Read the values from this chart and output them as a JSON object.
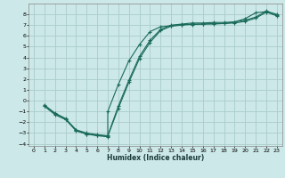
{
  "title": "",
  "xlabel": "Humidex (Indice chaleur)",
  "bg_color": "#cce8e8",
  "grid_color": "#aacccc",
  "line_color": "#1a6b5a",
  "xlim": [
    -0.5,
    23.5
  ],
  "ylim": [
    -4.2,
    9.0
  ],
  "xticks": [
    0,
    1,
    2,
    3,
    4,
    5,
    6,
    7,
    8,
    9,
    10,
    11,
    12,
    13,
    14,
    15,
    16,
    17,
    18,
    19,
    20,
    21,
    22,
    23
  ],
  "yticks": [
    -4,
    -3,
    -2,
    -1,
    0,
    1,
    2,
    3,
    4,
    5,
    6,
    7,
    8
  ],
  "line1_x": [
    1,
    2,
    3,
    4,
    5,
    6,
    7,
    7,
    8,
    9,
    10,
    11,
    12,
    13,
    14,
    15,
    16,
    17,
    18,
    19,
    20,
    21,
    22,
    23
  ],
  "line1_y": [
    -0.5,
    -1.2,
    -1.7,
    -2.8,
    -3.1,
    -3.25,
    -3.35,
    -1.0,
    1.5,
    3.7,
    5.2,
    6.4,
    6.85,
    6.95,
    7.05,
    7.05,
    7.1,
    7.1,
    7.15,
    7.3,
    7.6,
    8.15,
    8.25,
    7.85
  ],
  "line2_x": [
    1,
    2,
    3,
    4,
    5,
    6,
    7,
    8,
    9,
    10,
    11,
    12,
    13,
    14,
    15,
    16,
    17,
    18,
    19,
    20,
    21,
    22,
    23
  ],
  "line2_y": [
    -0.5,
    -1.3,
    -1.75,
    -2.75,
    -3.1,
    -3.2,
    -3.3,
    -0.7,
    1.7,
    3.9,
    5.4,
    6.5,
    6.9,
    7.0,
    7.1,
    7.1,
    7.15,
    7.15,
    7.2,
    7.35,
    7.65,
    8.2,
    7.9
  ],
  "line3_x": [
    1,
    2,
    3,
    4,
    5,
    6,
    7,
    8,
    9,
    10,
    11,
    12,
    13,
    14,
    15,
    16,
    17,
    18,
    19,
    20,
    21,
    22,
    23
  ],
  "line3_y": [
    -0.4,
    -1.15,
    -1.65,
    -2.7,
    -3.0,
    -3.15,
    -3.25,
    -0.5,
    1.9,
    4.1,
    5.6,
    6.6,
    7.0,
    7.1,
    7.2,
    7.2,
    7.25,
    7.25,
    7.3,
    7.45,
    7.75,
    8.3,
    8.0
  ]
}
